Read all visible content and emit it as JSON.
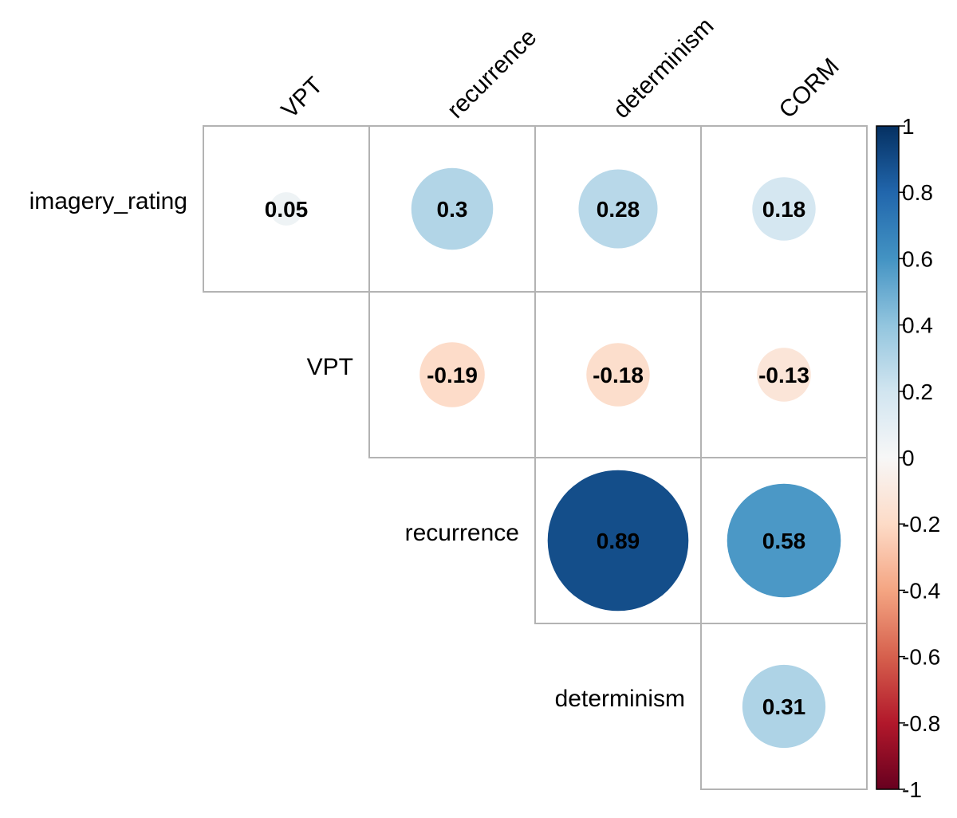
{
  "chart_data": {
    "type": "heatmap",
    "variant": "correlation-matrix-upper-circle",
    "title": "",
    "xlabel": "",
    "ylabel": "",
    "columns": [
      "VPT",
      "recurrence",
      "determinism",
      "CORM"
    ],
    "rows": [
      "imagery_rating",
      "VPT",
      "recurrence",
      "determinism"
    ],
    "cells": [
      {
        "row": "imagery_rating",
        "col": "VPT",
        "value": 0.05,
        "label": "0.05"
      },
      {
        "row": "imagery_rating",
        "col": "recurrence",
        "value": 0.3,
        "label": "0.3"
      },
      {
        "row": "imagery_rating",
        "col": "determinism",
        "value": 0.28,
        "label": "0.28"
      },
      {
        "row": "imagery_rating",
        "col": "CORM",
        "value": 0.18,
        "label": "0.18"
      },
      {
        "row": "VPT",
        "col": "recurrence",
        "value": -0.19,
        "label": "-0.19"
      },
      {
        "row": "VPT",
        "col": "determinism",
        "value": -0.18,
        "label": "-0.18"
      },
      {
        "row": "VPT",
        "col": "CORM",
        "value": -0.13,
        "label": "-0.13"
      },
      {
        "row": "recurrence",
        "col": "determinism",
        "value": 0.89,
        "label": "0.89"
      },
      {
        "row": "recurrence",
        "col": "CORM",
        "value": 0.58,
        "label": "0.58"
      },
      {
        "row": "determinism",
        "col": "CORM",
        "value": 0.31,
        "label": "0.31"
      }
    ],
    "value_range": [
      -1,
      1
    ],
    "colorbar": {
      "ticks": [
        1,
        0.8,
        0.6,
        0.4,
        0.2,
        0,
        -0.2,
        -0.4,
        -0.6,
        -0.8,
        -1
      ],
      "tick_labels": [
        "1",
        "0.8",
        "0.6",
        "0.4",
        "0.2",
        "0",
        "-0.2",
        "-0.4",
        "-0.6",
        "-0.8",
        "-1"
      ],
      "position": "right"
    },
    "colors": {
      "negative_end": "#67001f",
      "negative_mid": "#d6604d",
      "neutral": "#f7f7f7",
      "positive_mid": "#4393c3",
      "positive_end": "#053061",
      "grid": "#b3b3b3"
    },
    "legend": "none",
    "grid": true
  }
}
